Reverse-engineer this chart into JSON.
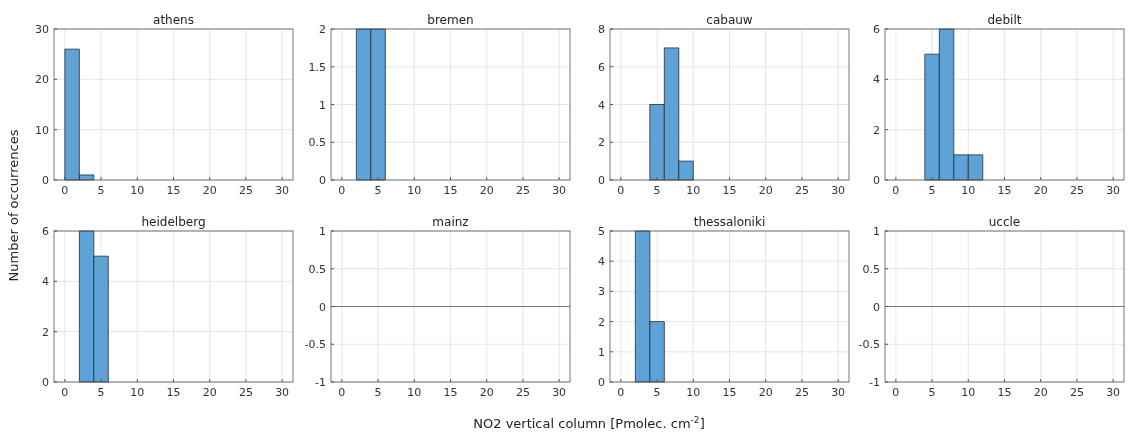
{
  "chart_data": [
    {
      "type": "histogram",
      "title": "athens",
      "ylabel": "Number of occurrences",
      "bins": [
        0,
        2,
        4
      ],
      "values": [
        26,
        1
      ],
      "color": "#5fa2d6",
      "xlim": [
        -1.5,
        31.5
      ],
      "xticks": [
        0,
        5,
        10,
        15,
        20,
        25,
        30
      ],
      "ylim": [
        0,
        30
      ],
      "yticks": [
        0,
        10,
        20,
        30
      ],
      "grid": true
    },
    {
      "type": "histogram",
      "title": "bremen",
      "bins": [
        2,
        4,
        6
      ],
      "values": [
        2,
        2
      ],
      "color": "#5fa2d6",
      "xlim": [
        -1.5,
        31.5
      ],
      "xticks": [
        0,
        5,
        10,
        15,
        20,
        25,
        30
      ],
      "ylim": [
        0,
        2
      ],
      "yticks": [
        0,
        0.5,
        1,
        1.5,
        2
      ],
      "grid": true
    },
    {
      "type": "histogram",
      "title": "cabauw",
      "bins": [
        4,
        6,
        8,
        10
      ],
      "values": [
        4,
        7,
        1
      ],
      "color": "#5fa2d6",
      "xlim": [
        -1.5,
        31.5
      ],
      "xticks": [
        0,
        5,
        10,
        15,
        20,
        25,
        30
      ],
      "ylim": [
        0,
        8
      ],
      "yticks": [
        0,
        2,
        4,
        6,
        8
      ],
      "grid": true
    },
    {
      "type": "histogram",
      "title": "debilt",
      "bins": [
        4,
        6,
        8,
        10,
        12
      ],
      "values": [
        5,
        6,
        1,
        1
      ],
      "color": "#5fa2d6",
      "xlim": [
        -1.5,
        31.5
      ],
      "xticks": [
        0,
        5,
        10,
        15,
        20,
        25,
        30
      ],
      "ylim": [
        0,
        6
      ],
      "yticks": [
        0,
        2,
        4,
        6
      ],
      "grid": true
    },
    {
      "type": "histogram",
      "title": "heidelberg",
      "bins": [
        2,
        4,
        6
      ],
      "values": [
        6,
        5
      ],
      "color": "#5fa2d6",
      "xlim": [
        -1.5,
        31.5
      ],
      "xticks": [
        0,
        5,
        10,
        15,
        20,
        25,
        30
      ],
      "ylim": [
        0,
        6
      ],
      "yticks": [
        0,
        2,
        4,
        6
      ],
      "grid": true
    },
    {
      "type": "histogram",
      "title": "mainz",
      "xlabel": "NO2 vertical column [Pmolec. cm$^{-2}$]",
      "ref_lines": [
        {
          "axis": "y",
          "value": 0,
          "color": "#7a7a7a"
        }
      ],
      "xlim": [
        -1.5,
        31.5
      ],
      "xticks": [
        0,
        5,
        10,
        15,
        20,
        25,
        30
      ],
      "ylim": [
        -1,
        1
      ],
      "yticks": [
        -1,
        -0.5,
        0,
        0.5,
        1
      ],
      "grid": true
    },
    {
      "type": "histogram",
      "title": "thessaloniki",
      "bins": [
        2,
        4,
        6
      ],
      "values": [
        5,
        2
      ],
      "color": "#5fa2d6",
      "xlim": [
        -1.5,
        31.5
      ],
      "xticks": [
        0,
        5,
        10,
        15,
        20,
        25,
        30
      ],
      "ylim": [
        0,
        5
      ],
      "yticks": [
        0,
        1,
        2,
        3,
        4,
        5
      ],
      "grid": true
    },
    {
      "type": "histogram",
      "title": "uccle",
      "ref_lines": [
        {
          "axis": "y",
          "value": 0,
          "color": "#7a7a7a"
        }
      ],
      "xlim": [
        -1.5,
        31.5
      ],
      "xticks": [
        0,
        5,
        10,
        15,
        20,
        25,
        30
      ],
      "ylim": [
        -1,
        1
      ],
      "yticks": [
        -1,
        -0.5,
        0,
        0.5,
        1
      ],
      "grid": true
    }
  ]
}
